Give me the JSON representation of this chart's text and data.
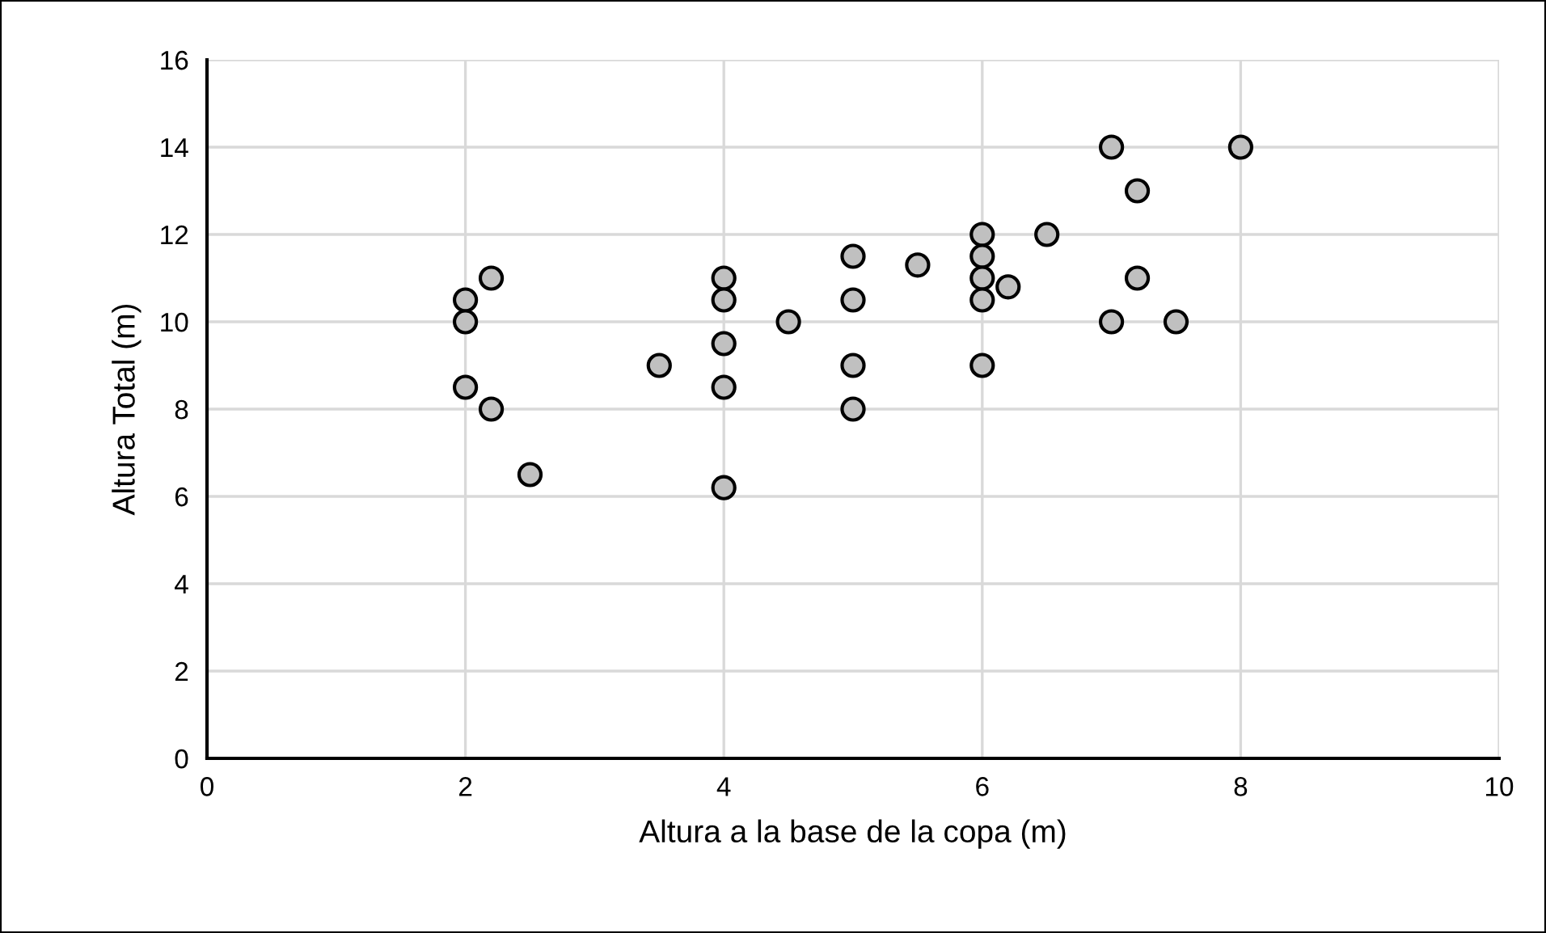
{
  "chart_data": {
    "type": "scatter",
    "xlabel": "Altura a la base de la copa (m)",
    "ylabel": "Altura Total (m)",
    "series": [
      {
        "color": "#c0c0c0",
        "x": [
          2,
          2,
          2,
          2.2,
          2.2,
          2.5,
          3.5,
          4,
          4,
          4,
          4,
          4,
          4.5,
          5,
          5,
          5,
          5,
          5.5,
          6,
          6,
          6,
          6,
          6,
          6.2,
          6.5,
          7,
          7,
          7.2,
          7.2,
          7.5,
          8
        ],
        "values": [
          10.5,
          10,
          8.5,
          11,
          8,
          6.5,
          9,
          11,
          10.5,
          9.5,
          8.5,
          6.2,
          10,
          11.5,
          10.5,
          9,
          8,
          11.3,
          12,
          11.5,
          11,
          10.5,
          9,
          10.8,
          12,
          14,
          10,
          13,
          11,
          10,
          14
        ]
      }
    ],
    "xlim": [
      0,
      10
    ],
    "xticks": [
      0,
      2,
      4,
      6,
      8,
      10
    ],
    "ylim": [
      0,
      16
    ],
    "yticks": [
      0,
      2,
      4,
      6,
      8,
      10,
      12,
      14,
      16
    ],
    "grid": true,
    "marker": "circle",
    "legend": false
  }
}
